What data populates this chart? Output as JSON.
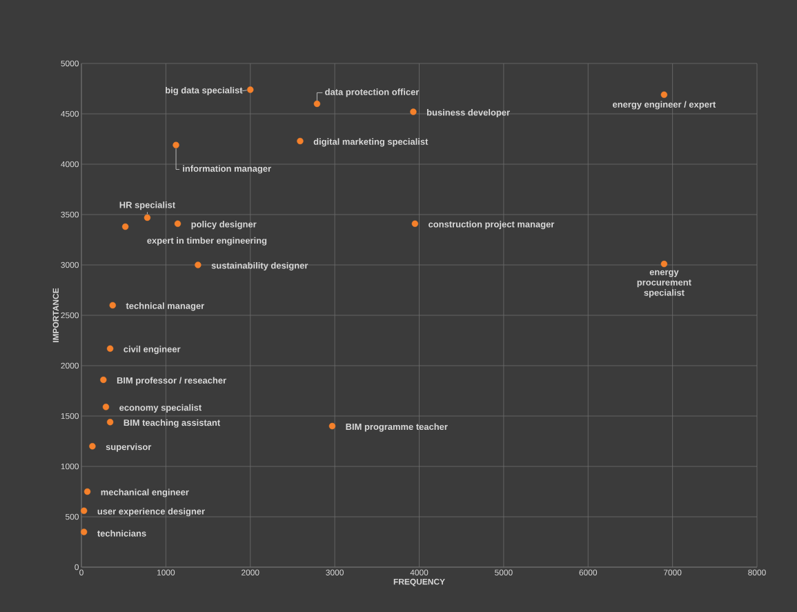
{
  "chart_data": {
    "type": "scatter",
    "xlabel": "FREQUENCY",
    "ylabel": "IMPORTANCE",
    "x": [
      2000,
      2790,
      3930,
      6900,
      1120,
      2590,
      780,
      1140,
      520,
      3950,
      1380,
      6900,
      370,
      340,
      260,
      290,
      340,
      2970,
      130,
      70,
      30,
      30
    ],
    "series": [
      {
        "color": "#f5812b",
        "values": [
          4740,
          4600,
          4520,
          4690,
          4190,
          4230,
          3470,
          3410,
          3380,
          3410,
          3000,
          3010,
          2600,
          2170,
          1860,
          1590,
          1440,
          1400,
          1200,
          750,
          560,
          350
        ]
      }
    ],
    "annotations": [
      {
        "text": "big data specialist",
        "x": 2000,
        "y": 4740
      },
      {
        "text": "data protection officer",
        "x": 2790,
        "y": 4600
      },
      {
        "text": "business developer",
        "x": 3930,
        "y": 4520
      },
      {
        "text": "energy engineer / expert",
        "x": 6900,
        "y": 4690
      },
      {
        "text": "information manager",
        "x": 1120,
        "y": 4190
      },
      {
        "text": "digital marketing specialist",
        "x": 2590,
        "y": 4230
      },
      {
        "text": "HR specialist",
        "x": 780,
        "y": 3470
      },
      {
        "text": "policy designer",
        "x": 1140,
        "y": 3410
      },
      {
        "text": "expert in timber engineering",
        "x": 520,
        "y": 3380
      },
      {
        "text": "construction project manager",
        "x": 3950,
        "y": 3410
      },
      {
        "text": "sustainability designer",
        "x": 1380,
        "y": 3000
      },
      {
        "text": "energy procurement specialist",
        "x": 6900,
        "y": 3010
      },
      {
        "text": "technical manager",
        "x": 370,
        "y": 2600
      },
      {
        "text": "civil engineer",
        "x": 340,
        "y": 2170
      },
      {
        "text": "BIM professor / reseacher",
        "x": 260,
        "y": 1860
      },
      {
        "text": "economy specialist",
        "x": 290,
        "y": 1590
      },
      {
        "text": "BIM teaching assistant",
        "x": 340,
        "y": 1440
      },
      {
        "text": "BIM programme teacher",
        "x": 2970,
        "y": 1400
      },
      {
        "text": "supervisor",
        "x": 130,
        "y": 1200
      },
      {
        "text": "mechanical engineer",
        "x": 70,
        "y": 750
      },
      {
        "text": "user experience designer",
        "x": 30,
        "y": 560
      },
      {
        "text": "technicians",
        "x": 30,
        "y": 350
      }
    ],
    "xlim": [
      0,
      8000
    ],
    "ylim": [
      0,
      5000
    ],
    "xticks": [
      0,
      1000,
      2000,
      3000,
      4000,
      5000,
      6000,
      7000,
      8000
    ],
    "yticks": [
      0,
      500,
      1000,
      1500,
      2000,
      2500,
      3000,
      3500,
      4000,
      4500,
      5000
    ],
    "grid": true,
    "marker": "circle"
  }
}
